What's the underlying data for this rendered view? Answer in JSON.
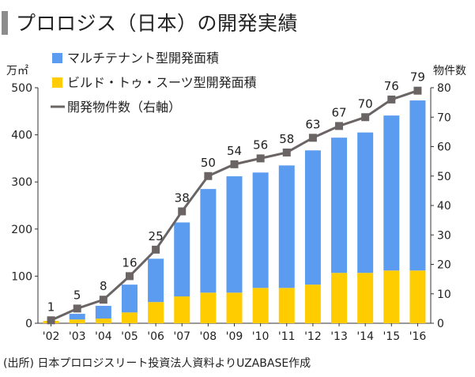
{
  "title": "プロロジス（日本）の開発実績",
  "source": "(出所) 日本プロロジスリート投資法人資料よりUZABASE作成",
  "chart_data": {
    "type": "bar",
    "stacked": true,
    "categories": [
      "'02",
      "'03",
      "'04",
      "'05",
      "'06",
      "'07",
      "'08",
      "'09",
      "'10",
      "'11",
      "'12",
      "'13",
      "'14",
      "'15",
      "'16"
    ],
    "left_axis": {
      "label": "万㎡",
      "ylim": [
        0,
        500
      ],
      "ticks": [
        0,
        100,
        200,
        300,
        400,
        500
      ]
    },
    "right_axis": {
      "label": "物件数",
      "ylim": [
        0,
        80
      ],
      "ticks": [
        0,
        10,
        20,
        30,
        40,
        50,
        60,
        70,
        80
      ]
    },
    "legend_position": "top-left",
    "series": [
      {
        "name": "ビルド・トゥ・スーツ型開発面積",
        "type": "bar",
        "axis": "left",
        "color": "#ffcc00",
        "values": [
          5,
          8,
          10,
          23,
          45,
          57,
          65,
          65,
          75,
          75,
          82,
          107,
          107,
          112,
          112
        ]
      },
      {
        "name": "マルチテナント型開発面積",
        "type": "bar",
        "axis": "left",
        "color": "#5b9bf0",
        "values": [
          0,
          12,
          27,
          59,
          92,
          157,
          220,
          247,
          245,
          260,
          285,
          287,
          298,
          329,
          361
        ]
      },
      {
        "name": "開発物件数（右軸）",
        "type": "line",
        "axis": "right",
        "color": "#6b6464",
        "values": [
          1,
          5,
          8,
          16,
          25,
          38,
          50,
          54,
          56,
          58,
          63,
          67,
          70,
          76,
          79
        ]
      }
    ]
  }
}
